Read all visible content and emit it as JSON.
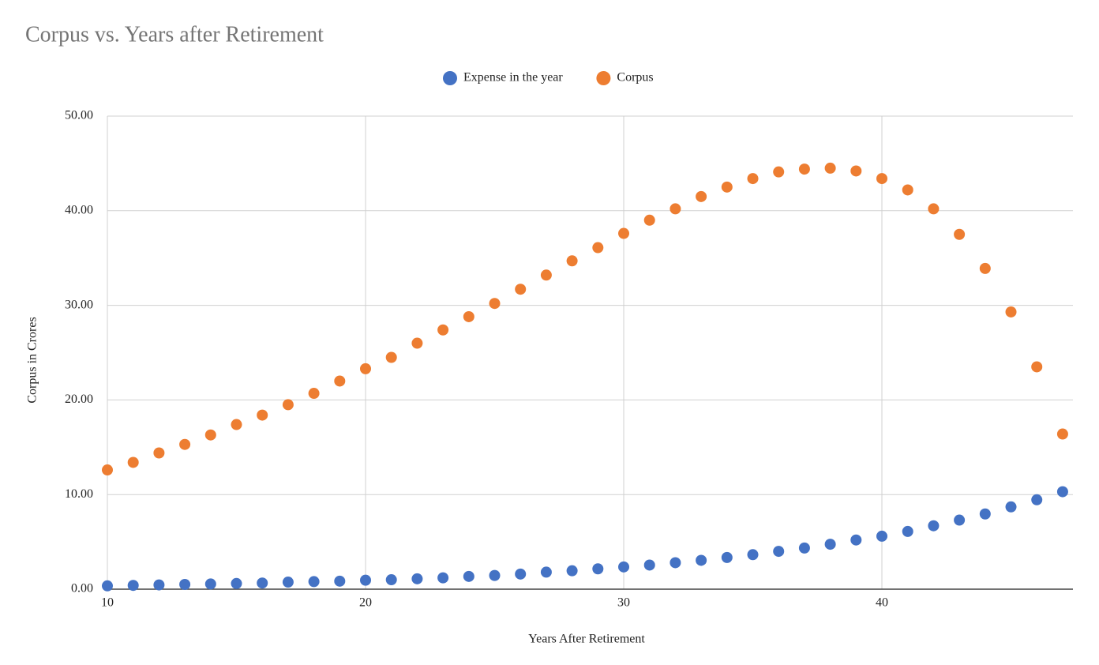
{
  "chart_data": {
    "type": "scatter",
    "title": "Corpus vs. Years after Retirement",
    "x_label": "Years After Retirement",
    "y_label": "Corpus in Crores",
    "x": [
      10,
      11,
      12,
      13,
      14,
      15,
      16,
      17,
      18,
      19,
      20,
      21,
      22,
      23,
      24,
      25,
      26,
      27,
      28,
      29,
      30,
      31,
      32,
      33,
      34,
      35,
      36,
      37,
      38,
      39,
      40,
      41,
      42,
      43,
      44,
      45,
      46,
      47
    ],
    "series": [
      {
        "name": "Expense in the year",
        "color": "#4472c4",
        "values": [
          0.35,
          0.4,
          0.45,
          0.5,
          0.55,
          0.6,
          0.65,
          0.75,
          0.8,
          0.85,
          0.95,
          1.0,
          1.1,
          1.2,
          1.35,
          1.45,
          1.6,
          1.8,
          1.95,
          2.15,
          2.35,
          2.55,
          2.8,
          3.05,
          3.35,
          3.65,
          4.0,
          4.35,
          4.75,
          5.2,
          5.6,
          6.1,
          6.7,
          7.3,
          7.95,
          8.7,
          9.45,
          10.3
        ]
      },
      {
        "name": "Corpus",
        "color": "#ed7d31",
        "values": [
          12.6,
          13.4,
          14.4,
          15.3,
          16.3,
          17.4,
          18.4,
          19.5,
          20.7,
          22.0,
          23.3,
          24.5,
          26.0,
          27.4,
          28.8,
          30.2,
          31.7,
          33.2,
          34.7,
          36.1,
          37.6,
          39.0,
          40.2,
          41.5,
          42.5,
          43.4,
          44.1,
          44.4,
          44.5,
          44.2,
          43.4,
          42.2,
          40.2,
          37.5,
          33.9,
          29.3,
          23.5,
          16.4
        ]
      }
    ],
    "xlim": [
      10,
      47.4
    ],
    "xticks": [
      10,
      20,
      30,
      40
    ],
    "ylim": [
      0,
      50
    ],
    "yticks": [
      {
        "value": 0,
        "label": "0.00"
      },
      {
        "value": 10,
        "label": "10.00"
      },
      {
        "value": 20,
        "label": "20.00"
      },
      {
        "value": 30,
        "label": "30.00"
      },
      {
        "value": 40,
        "label": "40.00"
      },
      {
        "value": 50,
        "label": "50.00"
      }
    ],
    "grid": true,
    "legend": "top"
  }
}
